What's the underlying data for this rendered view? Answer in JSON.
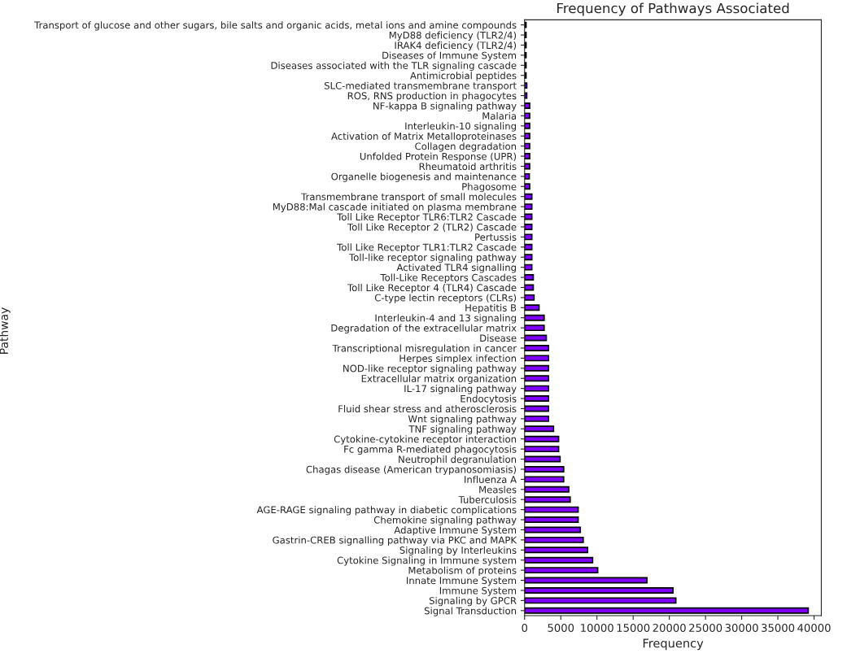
{
  "chart_data": {
    "type": "bar",
    "orientation": "horizontal",
    "title": "Frequency of Pathways Associated",
    "xlabel": "Frequency",
    "ylabel": "Pathway",
    "categories": [
      "Transport of glucose and other sugars, bile salts and organic acids, metal ions and amine compounds",
      "MyD88 deficiency (TLR2/4)",
      "IRAK4 deficiency (TLR2/4)",
      "Diseases of Immune System",
      "Diseases associated with the TLR signaling cascade",
      "Antimicrobial peptides",
      "SLC-mediated transmembrane transport",
      "ROS, RNS production in phagocytes",
      "NF-kappa B signaling pathway",
      "Malaria",
      "Interleukin-10 signaling",
      "Activation of Matrix Metalloproteinases",
      "Collagen degradation",
      "Unfolded Protein Response (UPR)",
      "Rheumatoid arthritis",
      "Organelle biogenesis and maintenance",
      "Phagosome",
      "Transmembrane transport of small molecules",
      "MyD88:Mal cascade initiated on plasma membrane",
      "Toll Like Receptor TLR6:TLR2 Cascade",
      "Toll Like Receptor 2 (TLR2) Cascade",
      "Pertussis",
      "Toll Like Receptor TLR1:TLR2 Cascade",
      "Toll-like receptor signaling pathway",
      "Activated TLR4 signalling",
      "Toll-Like Receptors Cascades",
      "Toll Like Receptor 4 (TLR4) Cascade",
      "C-type lectin receptors (CLRs)",
      "Hepatitis B",
      "Interleukin-4 and 13 signaling",
      "Degradation of the extracellular matrix",
      "Disease",
      "Transcriptional misregulation in cancer",
      "Herpes simplex infection",
      "NOD-like receptor signaling pathway",
      "Extracellular matrix organization",
      "IL-17 signaling pathway",
      "Endocytosis",
      "Fluid shear stress and atherosclerosis",
      "Wnt signaling pathway",
      "TNF signaling pathway",
      "Cytokine-cytokine receptor interaction",
      "Fc gamma R-mediated phagocytosis",
      "Neutrophil degranulation",
      "Chagas disease (American trypanosomiasis)",
      "Influenza A",
      "Measles",
      "Tuberculosis",
      "AGE-RAGE signaling pathway in diabetic complications",
      "Chemokine signaling pathway",
      "Adaptive Immune System",
      "Gastrin-CREB signalling pathway via PKC and MAPK",
      "Signaling by Interleukins",
      "Cytokine Signaling in Immune system",
      "Metabolism of proteins",
      "Innate Immune System",
      "Immune System",
      "Signaling by GPCR",
      "Signal Transduction"
    ],
    "values": [
      200,
      200,
      200,
      200,
      200,
      200,
      300,
      300,
      700,
      700,
      700,
      700,
      700,
      700,
      700,
      650,
      700,
      1000,
      1000,
      1000,
      1000,
      1000,
      1000,
      1000,
      1000,
      1200,
      1200,
      1300,
      2000,
      2700,
      2700,
      3000,
      3300,
      3300,
      3300,
      3300,
      3300,
      3300,
      3300,
      3300,
      4000,
      4700,
      4700,
      4900,
      5400,
      5400,
      6100,
      6300,
      7400,
      7400,
      7700,
      8100,
      8700,
      9400,
      10100,
      16900,
      20500,
      20900,
      39200
    ],
    "color": "#8000ff",
    "xlim": [
      0,
      41000
    ],
    "xticks": [
      0,
      5000,
      10000,
      15000,
      20000,
      25000,
      30000,
      35000,
      40000
    ],
    "grid": false
  }
}
